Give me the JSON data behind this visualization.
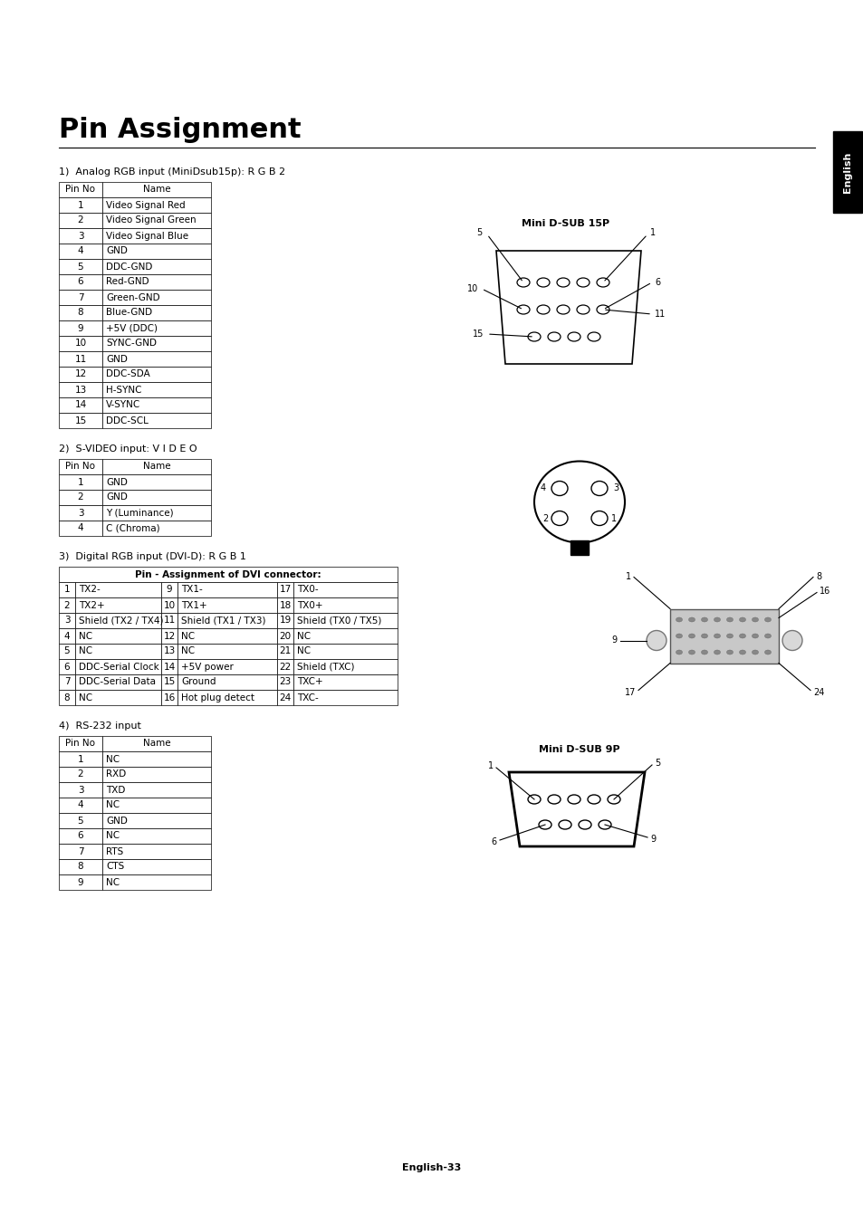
{
  "title": "Pin Assignment",
  "section1_label": "1)  Analog RGB input (MiniDsub15p): R G B 2",
  "section2_label": "2)  S-VIDEO input: V I D E O",
  "section3_label": "3)  Digital RGB input (DVI-D): R G B 1",
  "section4_label": "4)  RS-232 input",
  "footer": "English-33",
  "table1_headers": [
    "Pin No",
    "Name"
  ],
  "table1_data": [
    [
      "1",
      "Video Signal Red"
    ],
    [
      "2",
      "Video Signal Green"
    ],
    [
      "3",
      "Video Signal Blue"
    ],
    [
      "4",
      "GND"
    ],
    [
      "5",
      "DDC-GND"
    ],
    [
      "6",
      "Red-GND"
    ],
    [
      "7",
      "Green-GND"
    ],
    [
      "8",
      "Blue-GND"
    ],
    [
      "9",
      "+5V (DDC)"
    ],
    [
      "10",
      "SYNC-GND"
    ],
    [
      "11",
      "GND"
    ],
    [
      "12",
      "DDC-SDA"
    ],
    [
      "13",
      "H-SYNC"
    ],
    [
      "14",
      "V-SYNC"
    ],
    [
      "15",
      "DDC-SCL"
    ]
  ],
  "table2_headers": [
    "Pin No",
    "Name"
  ],
  "table2_data": [
    [
      "1",
      "GND"
    ],
    [
      "2",
      "GND"
    ],
    [
      "3",
      "Y (Luminance)"
    ],
    [
      "4",
      "C (Chroma)"
    ]
  ],
  "table3_title": "Pin - Assignment of DVI connector:",
  "table3_col_widths": [
    18,
    95,
    18,
    110,
    18,
    115
  ],
  "table3_data": [
    [
      "1",
      "TX2-",
      "9",
      "TX1-",
      "17",
      "TX0-"
    ],
    [
      "2",
      "TX2+",
      "10",
      "TX1+",
      "18",
      "TX0+"
    ],
    [
      "3",
      "Shield (TX2 / TX4)",
      "11",
      "Shield (TX1 / TX3)",
      "19",
      "Shield (TX0 / TX5)"
    ],
    [
      "4",
      "NC",
      "12",
      "NC",
      "20",
      "NC"
    ],
    [
      "5",
      "NC",
      "13",
      "NC",
      "21",
      "NC"
    ],
    [
      "6",
      "DDC-Serial Clock",
      "14",
      "+5V power",
      "22",
      "Shield (TXC)"
    ],
    [
      "7",
      "DDC-Serial Data",
      "15",
      "Ground",
      "23",
      "TXC+"
    ],
    [
      "8",
      "NC",
      "16",
      "Hot plug detect",
      "24",
      "TXC-"
    ]
  ],
  "table4_headers": [
    "Pin No",
    "Name"
  ],
  "table4_data": [
    [
      "1",
      "NC"
    ],
    [
      "2",
      "RXD"
    ],
    [
      "3",
      "TXD"
    ],
    [
      "4",
      "NC"
    ],
    [
      "5",
      "GND"
    ],
    [
      "6",
      "NC"
    ],
    [
      "7",
      "RTS"
    ],
    [
      "8",
      "CTS"
    ],
    [
      "9",
      "NC"
    ]
  ],
  "bg_color": "#ffffff",
  "text_color": "#000000"
}
